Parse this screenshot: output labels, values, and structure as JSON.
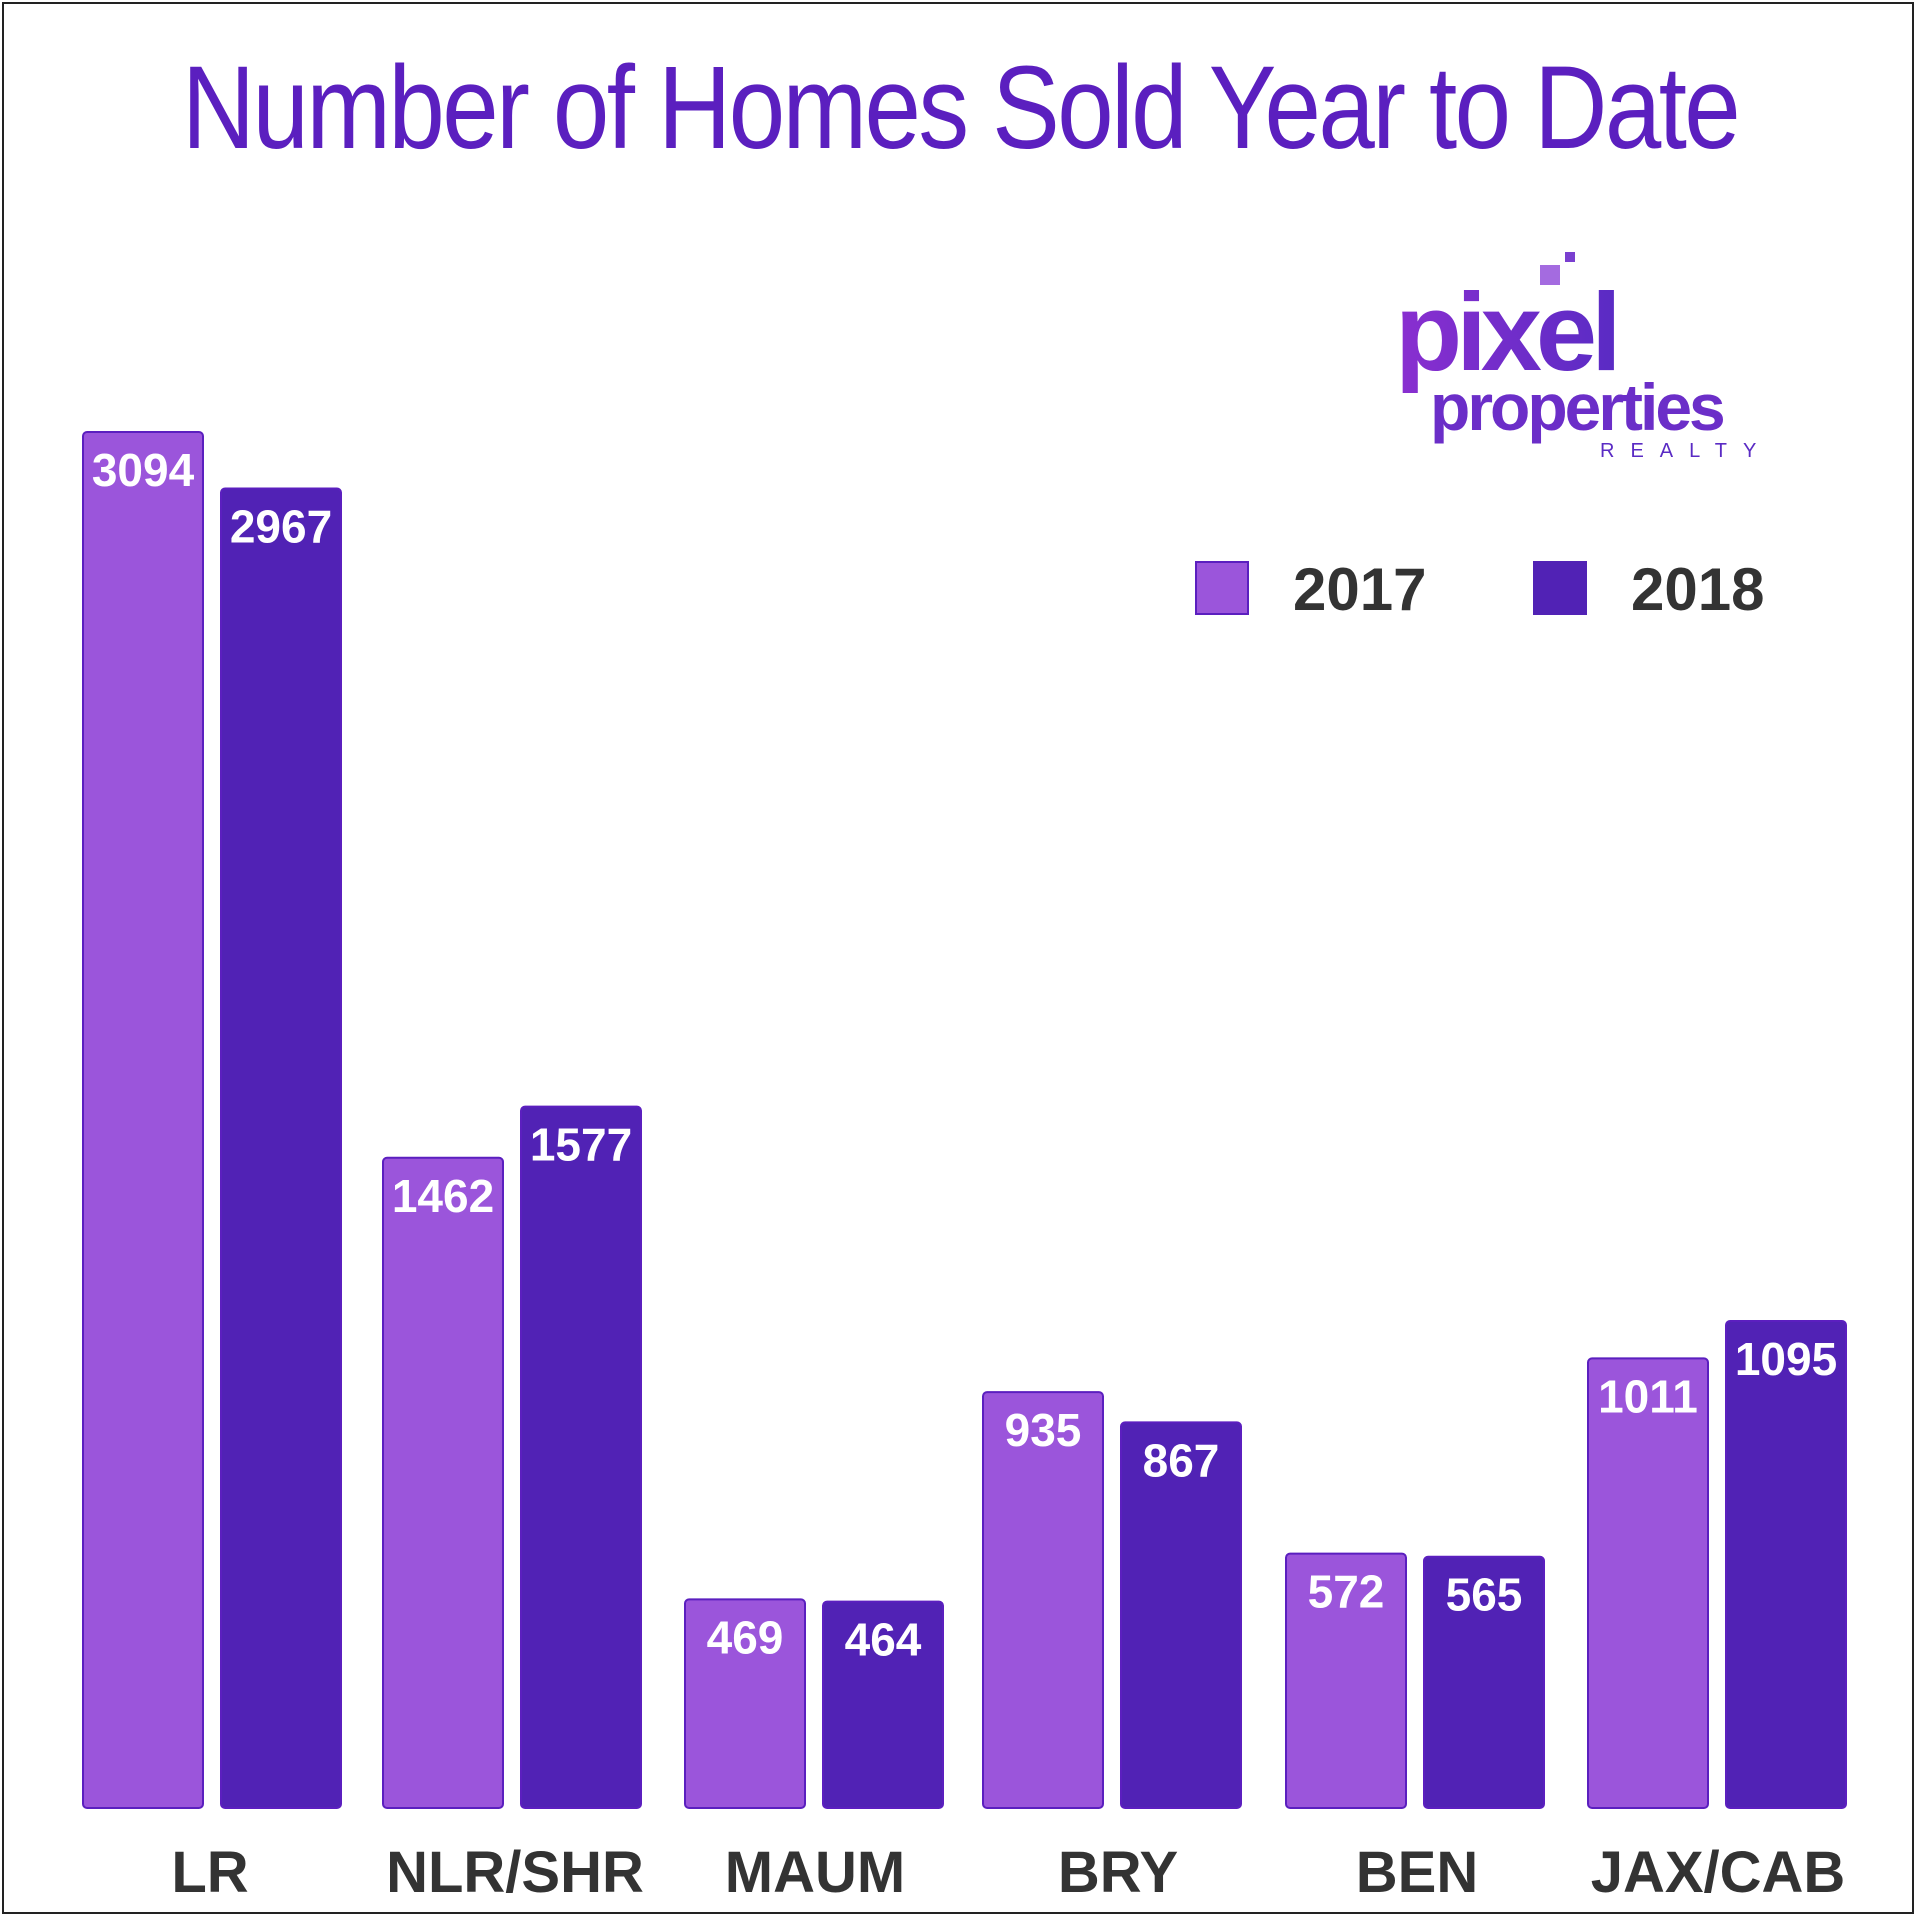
{
  "chart_data": {
    "type": "bar",
    "title": "Number of Homes Sold Year to Date",
    "categories": [
      "LR",
      "NLR/SHR",
      "MAUM",
      "BRY",
      "BEN",
      "JAX/CAB"
    ],
    "series": [
      {
        "name": "2017",
        "values": [
          3094,
          1462,
          469,
          935,
          572,
          1011
        ],
        "color": "#9b55db"
      },
      {
        "name": "2018",
        "values": [
          2967,
          1577,
          464,
          867,
          565,
          1095
        ],
        "color": "#5122b5"
      }
    ],
    "ylim": [
      0,
      3094
    ],
    "grid": false,
    "legend_placement": "top-right"
  },
  "logo": {
    "line1": "pixel",
    "line2": "properties",
    "line3": "REALTY"
  }
}
